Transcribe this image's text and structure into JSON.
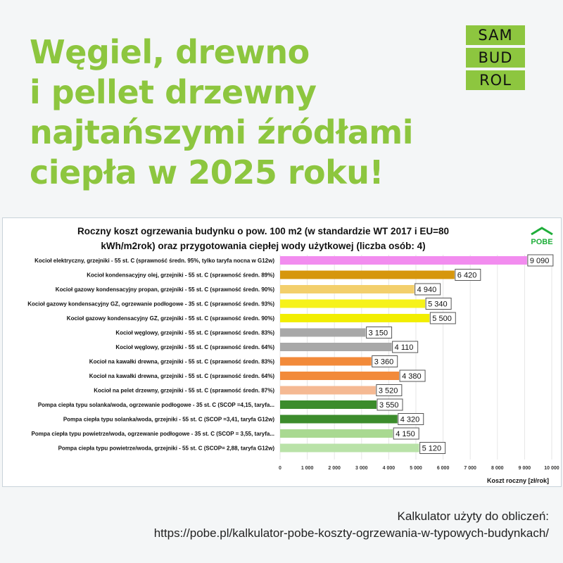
{
  "headline": [
    "Węgiel, drewno",
    "i pellet drzewny",
    "najtańszymi źródłami",
    "ciepła w 2025 roku!"
  ],
  "logo": {
    "lines": [
      "SAM",
      "BUD",
      "ROL"
    ],
    "color": "#8dc63f"
  },
  "pobe_logo": {
    "text": "POBE",
    "color": "#1fae3a"
  },
  "chart_data": {
    "type": "bar",
    "orientation": "horizontal",
    "title": "Roczny koszt ogrzewania budynku  o pow. 100 m2 (w standardzie WT 2017 i EU=80 kWh/m2rok) oraz przygotowania ciepłej wody użytkowej (liczba osób: 4)",
    "title_lines": [
      "Roczny koszt ogrzewania budynku  o pow. 100 m2 (w standardzie WT 2017 i EU=80",
      "kWh/m2rok) oraz przygotowania ciepłej wody użytkowej (liczba osób: 4)"
    ],
    "xlabel": "Koszt roczny [zł/rok]",
    "xlim": [
      0,
      10000
    ],
    "xticks": [
      "0",
      "1 000",
      "2 000",
      "3 000",
      "4 000",
      "5 000",
      "6 000",
      "7 000",
      "8 000",
      "9 000",
      "10 000"
    ],
    "grid": true,
    "categories": [
      "Kocioł  elektryczny,  grzejniki - 55 st. C  (sprawność średn. 95%, tylko taryfa nocna w G12w)",
      "Kocioł  kondensacyjny olej,  grzejniki - 55 st. C (sprawność średn. 89%)",
      "Kocioł gazowy kondensacyjny propan, grzejniki - 55 st. C (sprawność średn. 90%)",
      "Kocioł gazowy kondensacyjny GZ, ogrzewanie podłogowe - 35 st. C (sprawność średn. 93%)",
      "Kocioł gazowy kondensacyjny GZ, grzejniki - 55 st. C (sprawność średn. 90%)",
      "Kocioł węglowy,  grzejniki - 55 st. C (sprawność średn. 83%)",
      "Kocioł węglowy,  grzejniki - 55 st. C (sprawność średn. 64%)",
      "Kocioł na kawałki drewna, grzejniki - 55 st. C (sprawność średn. 83%)",
      "Kocioł na kawałki drewna, grzejniki - 55 st. C (sprawność średn. 64%)",
      "Kocioł na pelet drzewny, grzejniki - 55 st. C (sprawność średn. 87%)",
      "Pompa ciepła typu solanka/woda, ogrzewanie podłogowe - 35 st. C (SCOP =4,15, taryfa...",
      "Pompa ciepła typu solanka/woda, grzejniki - 55 st. C (SCOP =3,41, taryfa G12w)",
      "Pompa ciepła typu powietrze/woda, ogrzewanie podłogowe - 35 st. C (SCOP = 3,55, taryfa...",
      "Pompa ciepła typu powietrze/woda, grzejniki - 55 st. C (SCOP= 2,88, taryfa G12w)"
    ],
    "values": [
      9090,
      6420,
      4940,
      5340,
      5500,
      3150,
      4110,
      3360,
      4380,
      3520,
      3550,
      4320,
      4150,
      5120
    ],
    "value_labels": [
      "9 090",
      "6 420",
      "4 940",
      "5 340",
      "5 500",
      "3 150",
      "4 110",
      "3 360",
      "4 380",
      "3 520",
      "3 550",
      "4 320",
      "4 150",
      "5 120"
    ],
    "colors": [
      "#f28cef",
      "#d6960c",
      "#f3cf6c",
      "#f6f21a",
      "#f2ee00",
      "#a8a8a8",
      "#a8a8a8",
      "#f28a3a",
      "#f28a3a",
      "#f5b993",
      "#3c8c2c",
      "#3c8c2c",
      "#a9d991",
      "#b9e2a8"
    ]
  },
  "footer": {
    "line1": "Kalkulator użyty do obliczeń:",
    "line2": "https://pobe.pl/kalkulator-pobe-koszty-ogrzewania-w-typowych-budynkach/"
  }
}
